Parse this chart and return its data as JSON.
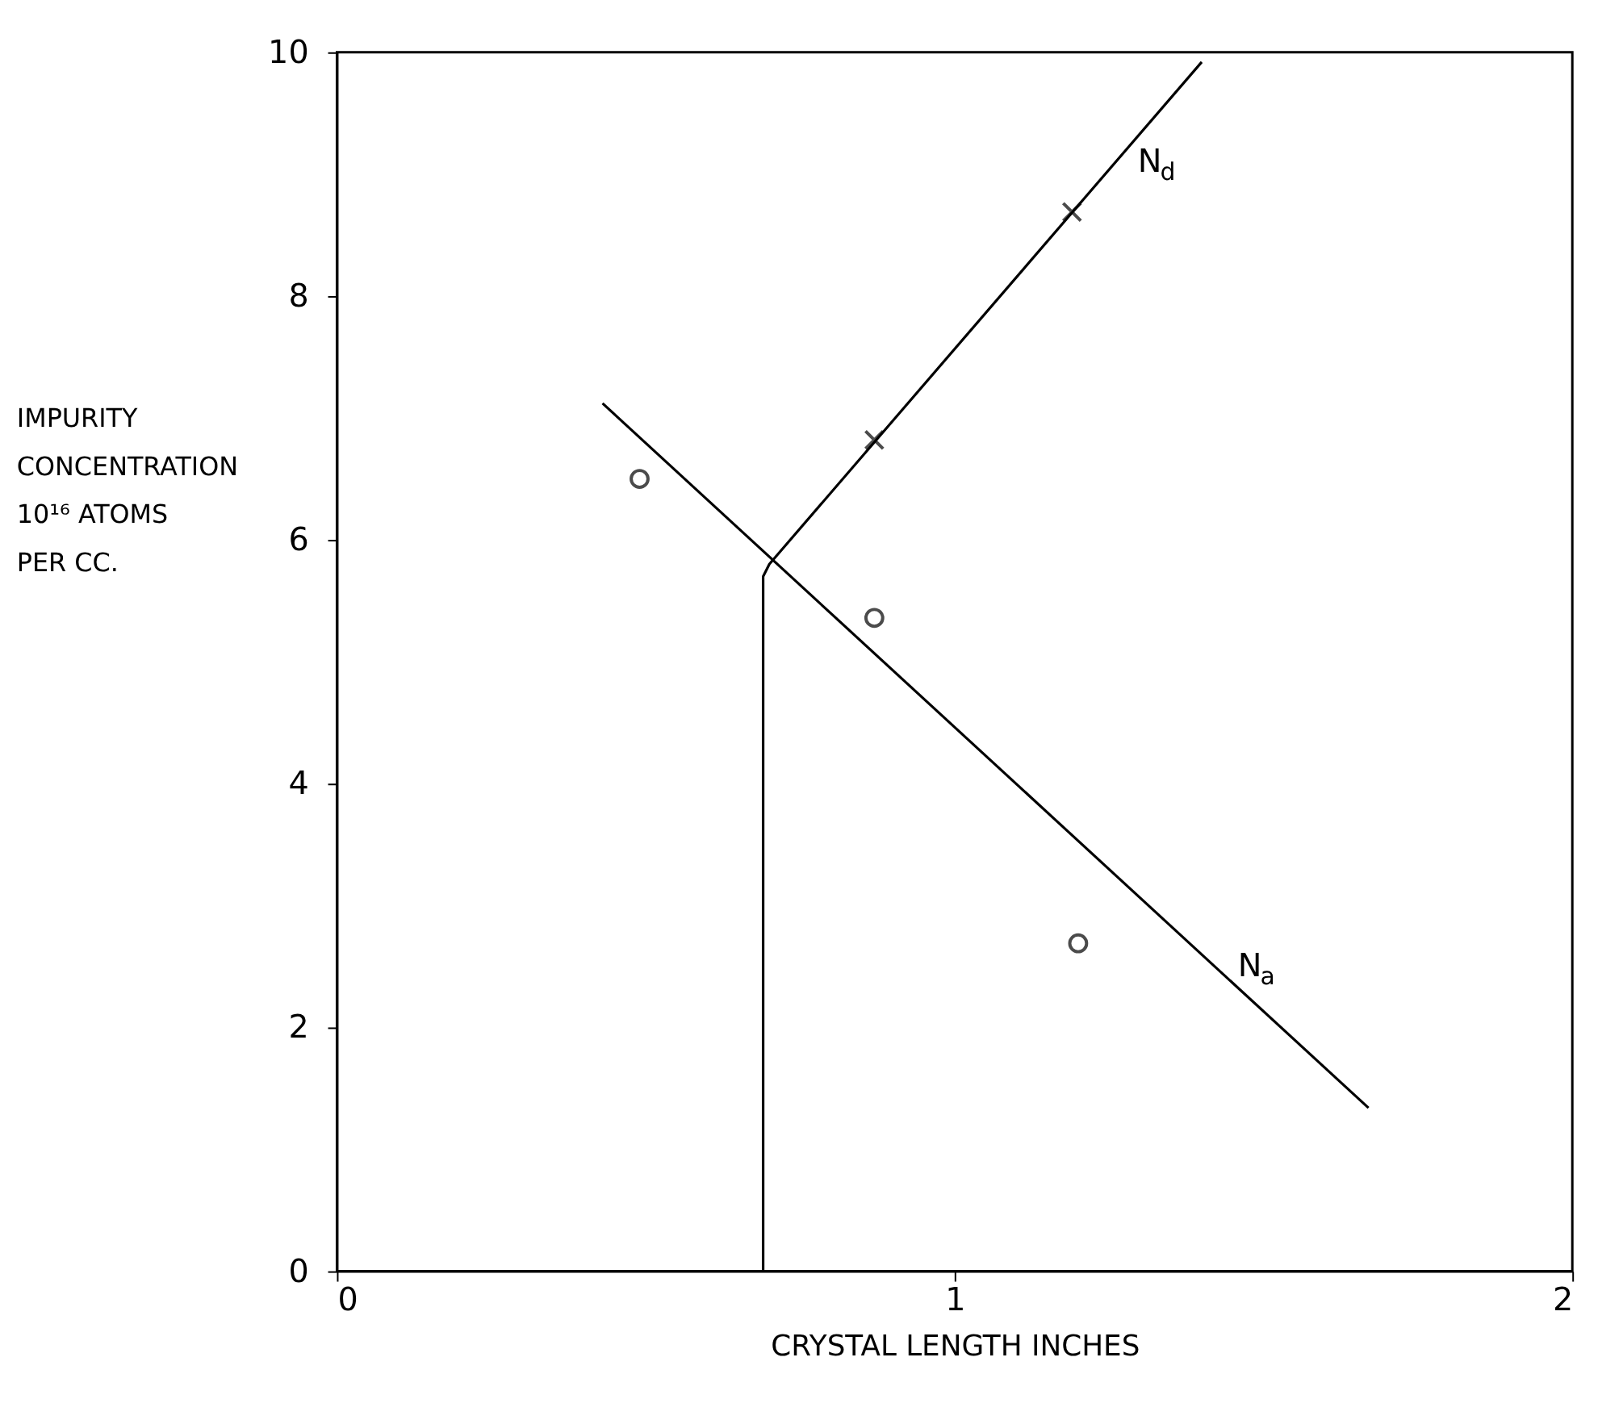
{
  "chart_data": {
    "type": "line",
    "xlabel": "CRYSTAL  LENGTH   INCHES",
    "ylabel": "IMPURITY\nCONCENTRATION\n\n10¹⁶ ATOMS\nPER CC.",
    "xlim": [
      0,
      2
    ],
    "ylim": [
      0,
      10
    ],
    "xticks": [
      0,
      1,
      2
    ],
    "yticks": [
      0,
      2,
      4,
      6,
      8,
      10
    ],
    "grid": false,
    "series": [
      {
        "name": "N$_{d}$",
        "color": "#000000",
        "marker": "none",
        "x": [
          0.69,
          0.69,
          0.7,
          1.4
        ],
        "values": [
          0,
          5.7,
          5.8,
          9.92
        ]
      },
      {
        "name": "N$_{a}$",
        "color": "#000000",
        "marker": "none",
        "x": [
          0.43,
          1.67
        ],
        "values": [
          7.12,
          1.34
        ]
      },
      {
        "type": "scatter",
        "color": "#000000",
        "marker": "cross",
        "x": [
          0.87,
          1.19
        ],
        "values": [
          6.82,
          8.69
        ]
      },
      {
        "type": "scatter",
        "color": "#000000",
        "marker": "circle",
        "x": [
          0.49,
          0.87,
          1.2
        ],
        "values": [
          6.5,
          5.36,
          2.69
        ]
      }
    ]
  }
}
